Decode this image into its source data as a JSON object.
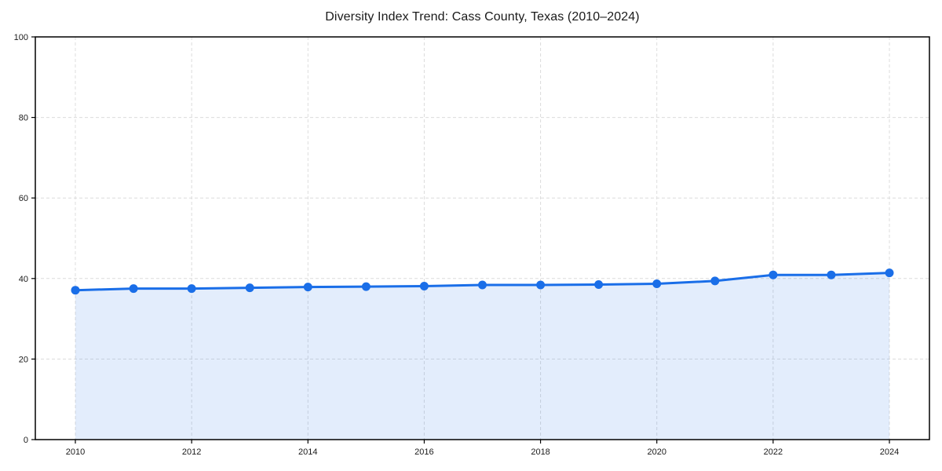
{
  "page": {
    "background_color": "#ffffff"
  },
  "chart_data": {
    "type": "area",
    "title": "Diversity Index Trend: Cass County, Texas (2010–2024)",
    "xlabel": "",
    "ylabel": "",
    "x": [
      2010,
      2011,
      2012,
      2013,
      2014,
      2015,
      2016,
      2017,
      2018,
      2019,
      2020,
      2021,
      2022,
      2023,
      2024
    ],
    "values": [
      37.1,
      37.5,
      37.5,
      37.7,
      37.9,
      38.0,
      38.1,
      38.4,
      38.4,
      38.5,
      38.7,
      39.4,
      40.9,
      40.9,
      41.4
    ],
    "ylim": [
      0,
      100
    ],
    "yticks": [
      0,
      20,
      40,
      60,
      80,
      100
    ],
    "xticks": [
      2010,
      2012,
      2014,
      2016,
      2018,
      2020,
      2022,
      2024
    ],
    "grid": true,
    "grid_style": "dashed",
    "legend": "none",
    "line_color": "#1a6ee8",
    "marker_color": "#1a6ee8",
    "fill_color": "#1a6ee8",
    "fill_opacity": 0.12,
    "grid_color": "#dcdcdc",
    "axis_color": "#000000",
    "text_color": "#1a1a1a"
  }
}
